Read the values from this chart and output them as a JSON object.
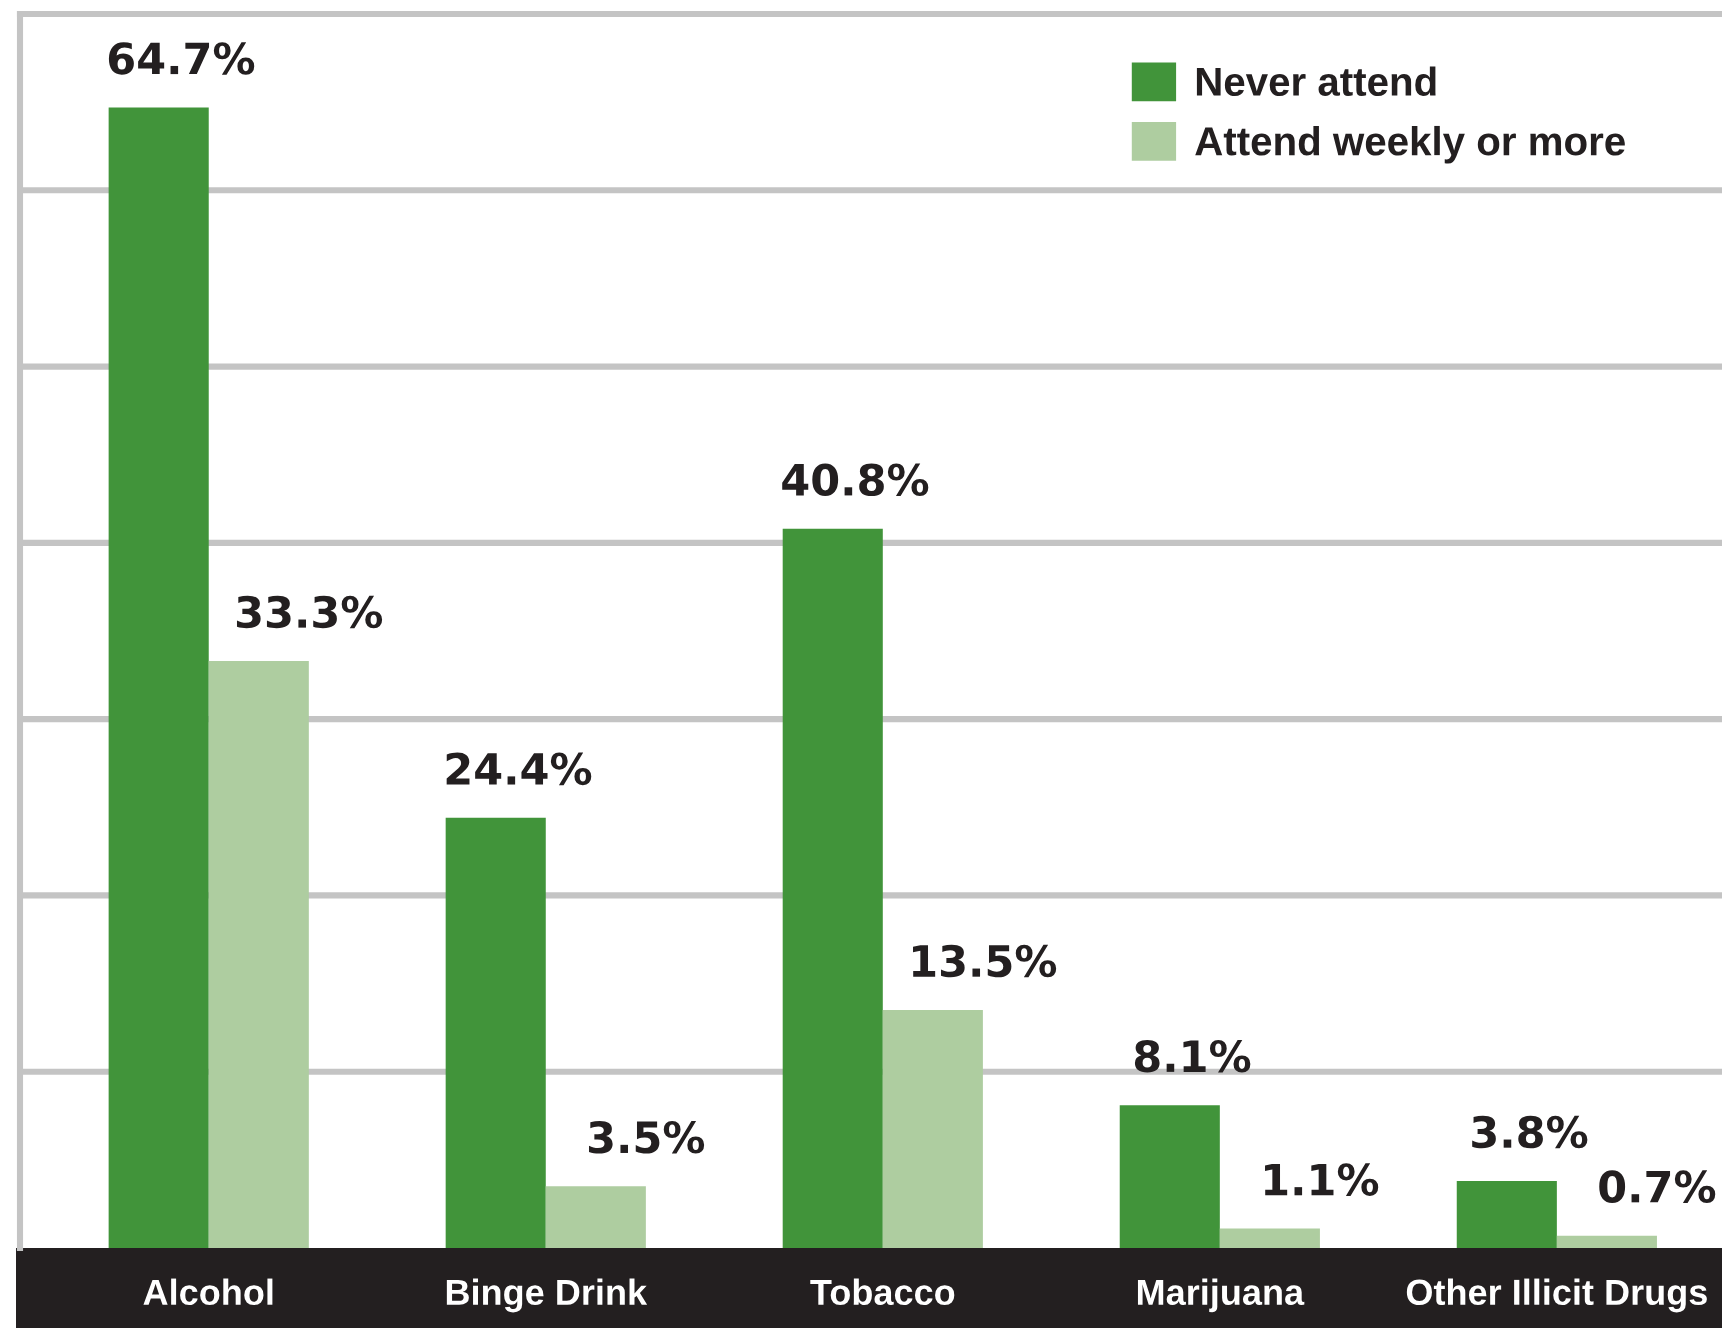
{
  "chart_data": {
    "type": "bar",
    "categories": [
      "Alcohol",
      "Binge Drink",
      "Tobacco",
      "Marijuana",
      "Other Illicit Drugs"
    ],
    "series": [
      {
        "name": "Never attend",
        "color": "#41943a",
        "values": [
          64.7,
          24.4,
          40.8,
          8.1,
          3.8
        ],
        "value_labels": [
          "64.7%",
          "24.4%",
          "40.8%",
          "8.1%",
          "3.8%"
        ]
      },
      {
        "name": "Attend weekly or more",
        "color": "#aecda0",
        "values": [
          33.3,
          3.5,
          13.5,
          1.1,
          0.7
        ],
        "value_labels": [
          "33.3%",
          "3.5%",
          "13.5%",
          "1.1%",
          "0.7%"
        ]
      }
    ],
    "ylim": [
      0,
      70
    ],
    "yticks": [
      {
        "value": 10,
        "label": null
      },
      {
        "value": 20,
        "label": null
      },
      {
        "value": 30,
        "label": null
      },
      {
        "value": 40,
        "label": null
      },
      {
        "value": 50,
        "label": null
      },
      {
        "value": 60,
        "label": null
      },
      {
        "value": 70,
        "label": null
      }
    ],
    "grid": "y",
    "legend": "top right",
    "tick_labels": "x"
  }
}
